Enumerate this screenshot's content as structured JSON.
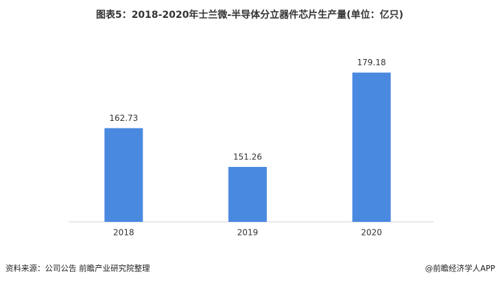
{
  "chart_data": {
    "type": "bar",
    "title": "图表5：2018-2020年士兰微-半导体分立器件芯片生产量(单位：亿只)",
    "categories": [
      "2018",
      "2019",
      "2020"
    ],
    "values": [
      162.73,
      151.26,
      179.18
    ],
    "color": "#4a89e0",
    "ylim": [
      135,
      185
    ]
  },
  "footer": {
    "source": "资料来源：公司公告 前瞻产业研究院整理",
    "credit": "@前瞻经济学人APP"
  }
}
